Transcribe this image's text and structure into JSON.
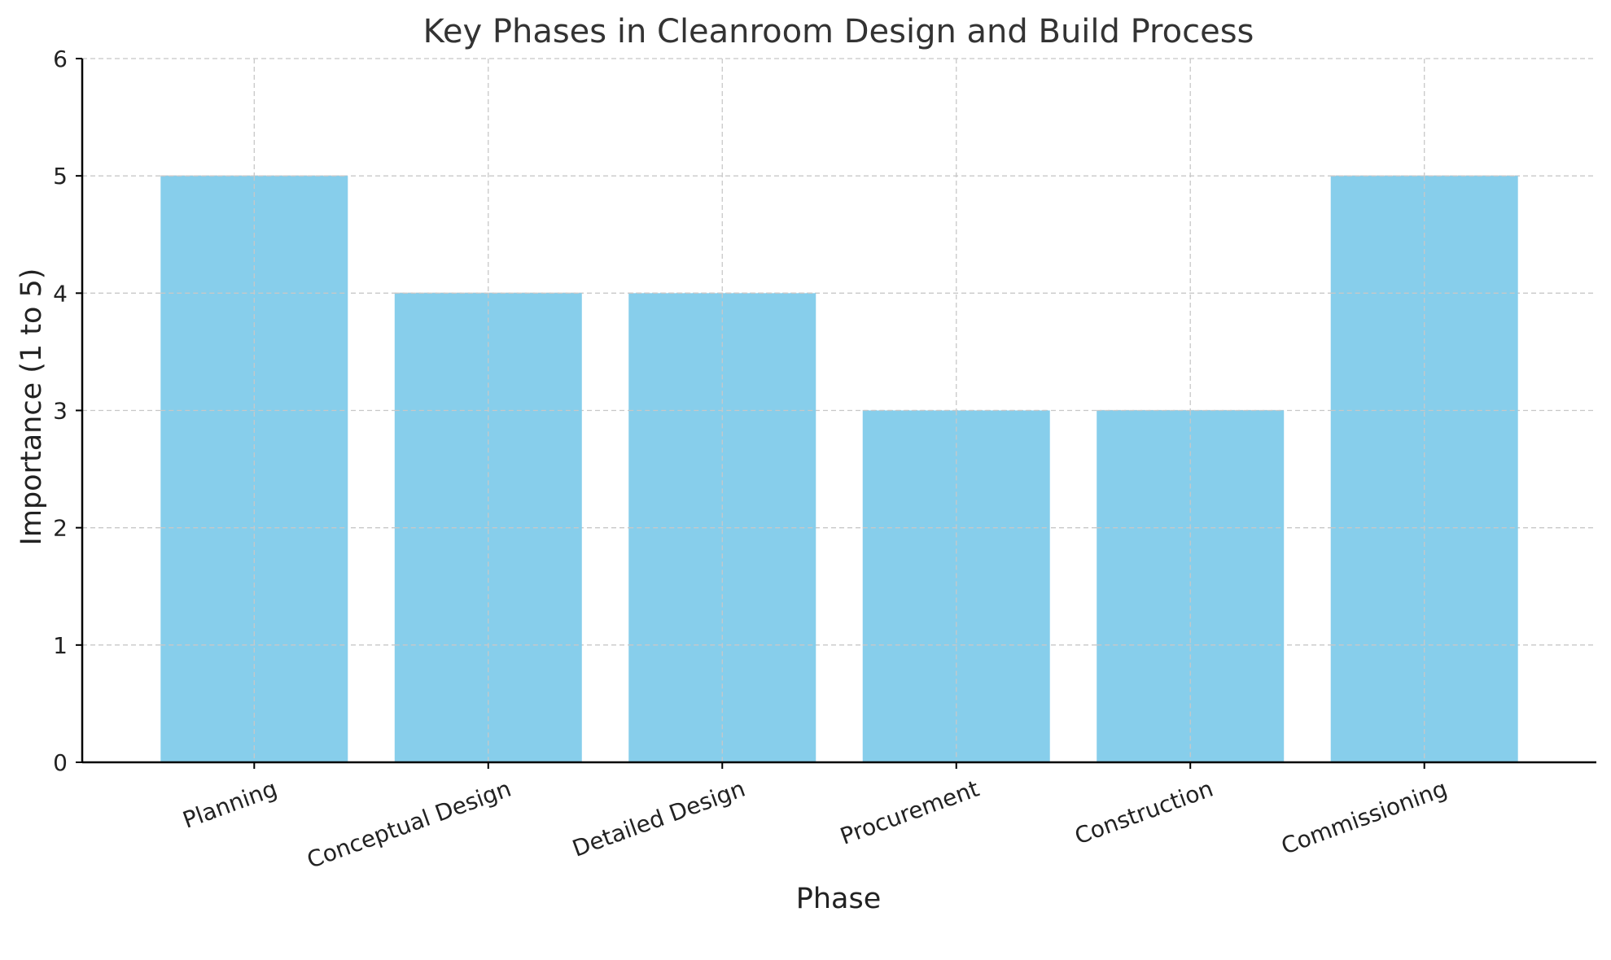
{
  "chart_data": {
    "type": "bar",
    "title": "Key Phases in Cleanroom Design and Build Process",
    "xlabel": "Phase",
    "ylabel": "Importance (1 to 5)",
    "categories": [
      "Planning",
      "Conceptual Design",
      "Detailed Design",
      "Procurement",
      "Construction",
      "Commissioning"
    ],
    "values": [
      5,
      4,
      4,
      3,
      3,
      5
    ],
    "ylim": [
      0,
      6
    ],
    "yticks": [
      "0",
      "1",
      "2",
      "3",
      "4",
      "5",
      "6"
    ],
    "grid": true,
    "bar_color": "#87CEEB"
  }
}
